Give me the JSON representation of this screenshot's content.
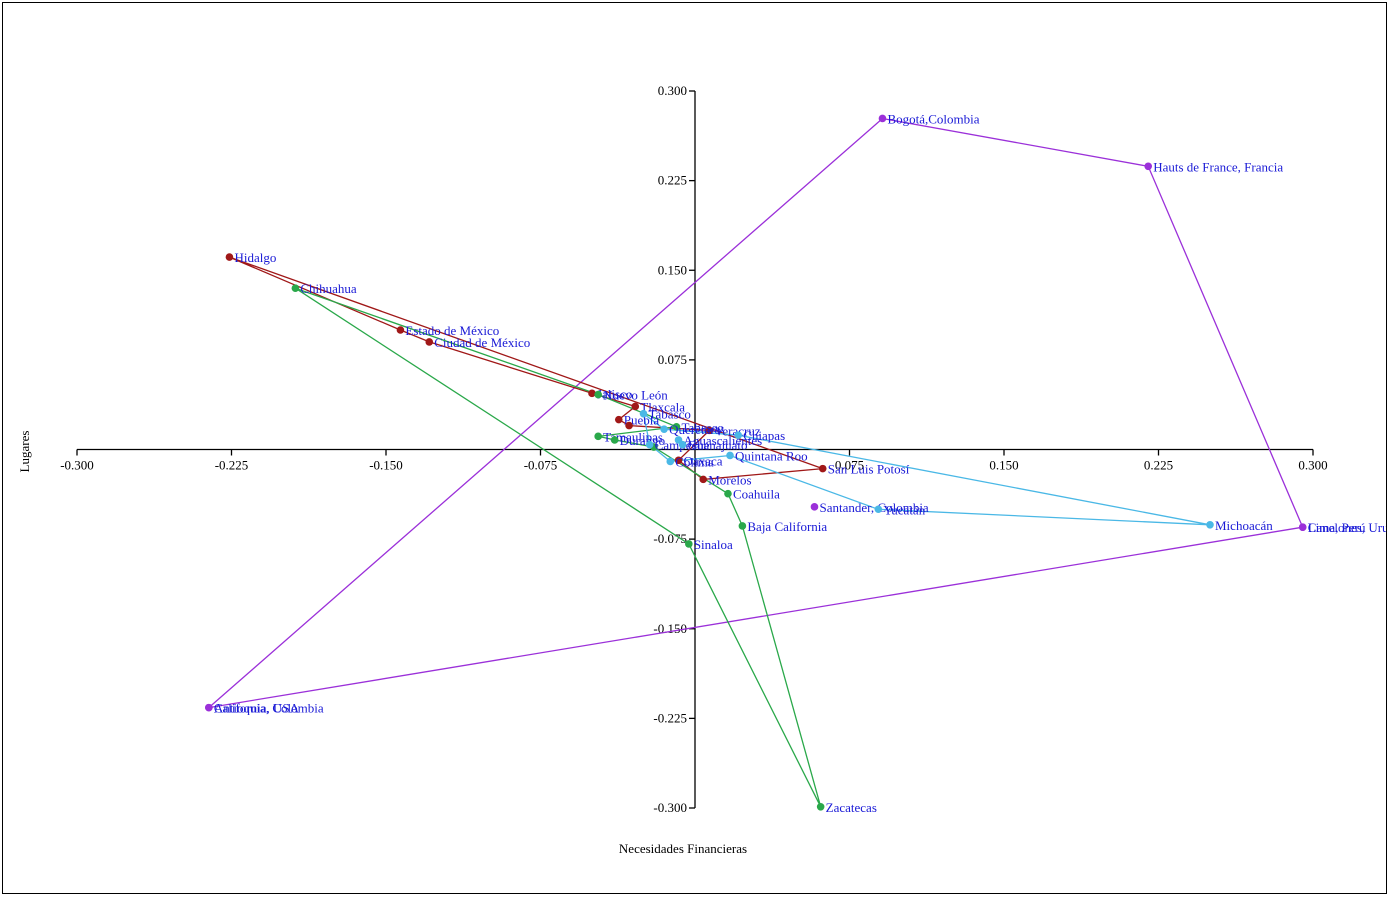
{
  "chart_data": {
    "type": "scatter",
    "title": "",
    "xlabel": "Necesidades Financieras",
    "ylabel": "Lugares",
    "xlim": [
      -0.3,
      0.3
    ],
    "ylim": [
      -0.3,
      0.3
    ],
    "xticks": [
      "-0.300",
      "-0.225",
      "-0.150",
      "-0.075",
      "0.075",
      "0.150",
      "0.225",
      "0.300"
    ],
    "yticks": [
      "0.300",
      "0.225",
      "0.150",
      "0.075",
      "-0.075",
      "-0.150",
      "-0.225",
      "-0.300"
    ],
    "grid": false,
    "series": [
      {
        "color": "#9b30d9",
        "connected": true,
        "points": [
          {
            "label": "Bogotá,Colombia",
            "x": 0.091,
            "y": 0.277
          },
          {
            "label": "Hauts de France, Francia",
            "x": 0.22,
            "y": 0.237
          },
          {
            "label": "Canelones, Uruguay",
            "x": 0.295,
            "y": -0.065
          },
          {
            "label": "California, USA",
            "x": -0.236,
            "y": -0.216
          },
          {
            "label": "Bogotá,Colombia",
            "x": 0.091,
            "y": 0.277
          }
        ],
        "extra_points": [
          {
            "label": "Santander, Colombia",
            "x": 0.058,
            "y": -0.048
          },
          {
            "label": "Antioquia, Colombia",
            "x": -0.236,
            "y": -0.216
          },
          {
            "label": "Lima, Perú",
            "x": 0.295,
            "y": -0.065
          }
        ]
      },
      {
        "color": "#a01818",
        "connected": true,
        "points": [
          {
            "label": "Hidalgo",
            "x": -0.226,
            "y": 0.161
          },
          {
            "label": "Estado de México",
            "x": -0.143,
            "y": 0.1
          },
          {
            "label": "Ciudad de México",
            "x": -0.129,
            "y": 0.09
          },
          {
            "label": "Jalisco",
            "x": -0.05,
            "y": 0.047
          },
          {
            "label": "Tlaxcala",
            "x": -0.029,
            "y": 0.036
          },
          {
            "label": "Puebla",
            "x": -0.037,
            "y": 0.025
          },
          {
            "label": "",
            "x": -0.032,
            "y": 0.02
          },
          {
            "label": "Veracruz",
            "x": 0.007,
            "y": 0.016
          },
          {
            "label": "Oaxaca",
            "x": -0.008,
            "y": -0.009
          },
          {
            "label": "Morelos",
            "x": 0.004,
            "y": -0.025
          },
          {
            "label": "San Luis Potosí",
            "x": 0.062,
            "y": -0.016
          },
          {
            "label": "Hidalgo",
            "x": -0.226,
            "y": 0.161
          }
        ]
      },
      {
        "color": "#2aa84a",
        "connected": true,
        "points": [
          {
            "label": "Chihuahua",
            "x": -0.194,
            "y": 0.135
          },
          {
            "label": "Nuevo León",
            "x": -0.047,
            "y": 0.046
          },
          {
            "label": "Tabasco",
            "x": -0.009,
            "y": 0.019
          },
          {
            "label": "Tamaulipas",
            "x": -0.047,
            "y": 0.011
          },
          {
            "label": "Durango",
            "x": -0.039,
            "y": 0.008
          },
          {
            "label": "",
            "x": -0.02,
            "y": 0.002
          },
          {
            "label": "Coahuila",
            "x": 0.016,
            "y": -0.037
          },
          {
            "label": "Baja California",
            "x": 0.023,
            "y": -0.064
          },
          {
            "label": "Zacatecas",
            "x": 0.061,
            "y": -0.299
          },
          {
            "label": "Sinaloa",
            "x": -0.003,
            "y": -0.079
          },
          {
            "label": "Chihuahua",
            "x": -0.194,
            "y": 0.135
          }
        ]
      },
      {
        "color": "#4ab8e6",
        "connected": true,
        "points": [
          {
            "label": "Querétaro",
            "x": -0.015,
            "y": 0.017
          },
          {
            "label": "Chiapas",
            "x": 0.021,
            "y": 0.012
          },
          {
            "label": "Michoacán",
            "x": 0.25,
            "y": -0.063
          },
          {
            "label": "Yucatán",
            "x": 0.089,
            "y": -0.05
          },
          {
            "label": "Quintana Roo",
            "x": 0.017,
            "y": -0.005
          },
          {
            "label": "Colima",
            "x": -0.012,
            "y": -0.01
          },
          {
            "label": "Campeche",
            "x": -0.022,
            "y": 0.004
          },
          {
            "label": "Tabasco",
            "x": -0.025,
            "y": 0.03
          },
          {
            "label": "Querétaro",
            "x": -0.015,
            "y": 0.017
          }
        ],
        "extra_points": [
          {
            "label": "Aguascalientes",
            "x": -0.008,
            "y": 0.008
          },
          {
            "label": "Guanajuato",
            "x": -0.006,
            "y": 0.004
          }
        ]
      }
    ]
  }
}
